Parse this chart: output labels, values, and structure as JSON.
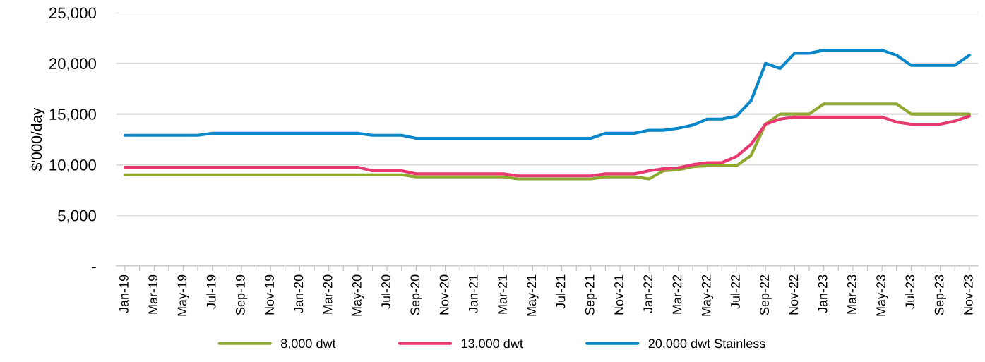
{
  "chart_data": {
    "type": "line",
    "ylabel": "$'000/day",
    "categories": [
      "Jan-19",
      null,
      "Mar-19",
      null,
      "May-19",
      null,
      "Jul-19",
      null,
      "Sep-19",
      null,
      "Nov-19",
      null,
      "Jan-20",
      null,
      "Mar-20",
      null,
      "May-20",
      null,
      "Jul-20",
      null,
      "Sep-20",
      null,
      "Nov-20",
      null,
      "Jan-21",
      null,
      "Mar-21",
      null,
      "May-21",
      null,
      "Jul-21",
      null,
      "Sep-21",
      null,
      "Nov-21",
      null,
      "Jan-22",
      null,
      "Mar-22",
      null,
      "May-22",
      null,
      "Jul-22",
      null,
      "Sep-22",
      null,
      "Nov-22",
      null,
      "Jan-23",
      null,
      "Mar-23",
      null,
      "May-23",
      null,
      "Jul-23",
      null,
      "Sep-23",
      null,
      "Nov-23"
    ],
    "series": [
      {
        "name": "8,000 dwt",
        "color": "#8fa832",
        "values": [
          9000,
          9000,
          9000,
          9000,
          9000,
          9000,
          9000,
          9000,
          9000,
          9000,
          9000,
          9000,
          9000,
          9000,
          9000,
          9000,
          9000,
          9000,
          9000,
          9000,
          8800,
          8800,
          8800,
          8800,
          8800,
          8800,
          8800,
          8600,
          8600,
          8600,
          8600,
          8600,
          8600,
          8800,
          8800,
          8800,
          8600,
          9400,
          9500,
          9800,
          9900,
          9900,
          9900,
          10900,
          14000,
          15000,
          15000,
          15000,
          16000,
          16000,
          16000,
          16000,
          16000,
          16000,
          15000,
          15000,
          15000,
          15000,
          15000
        ]
      },
      {
        "name": "13,000 dwt",
        "color": "#e8396f",
        "values": [
          9750,
          9750,
          9750,
          9750,
          9750,
          9750,
          9750,
          9750,
          9750,
          9750,
          9750,
          9750,
          9750,
          9750,
          9750,
          9750,
          9750,
          9400,
          9400,
          9400,
          9100,
          9100,
          9100,
          9100,
          9100,
          9100,
          9100,
          8900,
          8900,
          8900,
          8900,
          8900,
          8900,
          9100,
          9100,
          9100,
          9400,
          9600,
          9700,
          10000,
          10200,
          10200,
          10800,
          12000,
          14000,
          14500,
          14700,
          14700,
          14700,
          14700,
          14700,
          14700,
          14700,
          14200,
          14000,
          14000,
          14000,
          14300,
          14800
        ]
      },
      {
        "name": "20,000 dwt Stainless",
        "color": "#0a87c8",
        "values": [
          12900,
          12900,
          12900,
          12900,
          12900,
          12900,
          13100,
          13100,
          13100,
          13100,
          13100,
          13100,
          13100,
          13100,
          13100,
          13100,
          13100,
          12900,
          12900,
          12900,
          12600,
          12600,
          12600,
          12600,
          12600,
          12600,
          12600,
          12600,
          12600,
          12600,
          12600,
          12600,
          12600,
          13100,
          13100,
          13100,
          13400,
          13400,
          13600,
          13900,
          14500,
          14500,
          14800,
          16300,
          20000,
          19500,
          21000,
          21000,
          21300,
          21300,
          21300,
          21300,
          21300,
          20800,
          19800,
          19800,
          19800,
          19800,
          20800
        ]
      }
    ],
    "ylim": [
      0,
      25000
    ],
    "yticks": [
      {
        "value": 0,
        "label": "-"
      },
      {
        "value": 5000,
        "label": "5,000"
      },
      {
        "value": 10000,
        "label": "10,000"
      },
      {
        "value": 15000,
        "label": "15,000"
      },
      {
        "value": 20000,
        "label": "20,000"
      },
      {
        "value": 25000,
        "label": "25,000"
      }
    ],
    "grid": "y",
    "legend": "bottom",
    "marker": "none",
    "line_style": "solid"
  }
}
